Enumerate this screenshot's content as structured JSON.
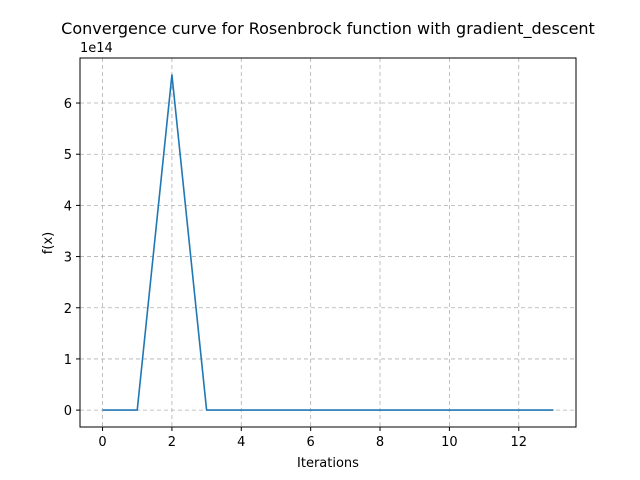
{
  "chart_data": {
    "type": "line",
    "title": "Convergence curve for Rosenbrock function with gradient_descent",
    "xlabel": "Iterations",
    "ylabel": "f(x)",
    "y_offset_label": "1e14",
    "y_scale": 100000000000000.0,
    "xlim": [
      -0.65,
      13.65
    ],
    "ylim": [
      -0.33,
      6.88
    ],
    "x_ticks": [
      0,
      2,
      4,
      6,
      8,
      10,
      12
    ],
    "y_ticks": [
      0,
      1,
      2,
      3,
      4,
      5,
      6
    ],
    "grid": true,
    "series": [
      {
        "color": "#1f77b4",
        "x": [
          0,
          1,
          2,
          3,
          4,
          5,
          6,
          7,
          8,
          9,
          10,
          11,
          12,
          13
        ],
        "y": [
          0,
          0,
          6.55,
          0,
          0,
          0,
          0,
          0,
          0,
          0,
          0,
          0,
          0,
          0
        ]
      }
    ]
  }
}
